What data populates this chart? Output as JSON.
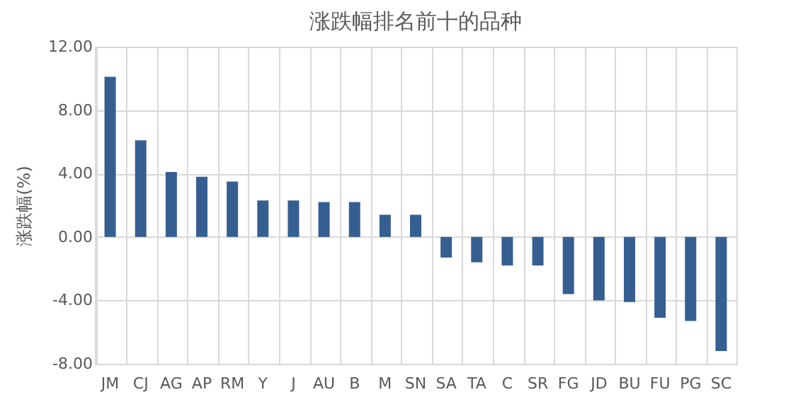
{
  "chart_data": {
    "type": "bar",
    "title": "涨跌幅排名前十的品种",
    "ylabel": "涨跌幅(%)",
    "categories": [
      "JM",
      "CJ",
      "AG",
      "AP",
      "RM",
      "Y",
      "J",
      "AU",
      "B",
      "M",
      "SN",
      "SA",
      "TA",
      "C",
      "SR",
      "FG",
      "JD",
      "BU",
      "FU",
      "PG",
      "SC"
    ],
    "values": [
      10.1,
      6.1,
      4.1,
      3.8,
      3.5,
      2.3,
      2.3,
      2.2,
      2.2,
      1.4,
      1.4,
      -1.3,
      -1.6,
      -1.8,
      -1.8,
      -3.6,
      -4.0,
      -4.1,
      -5.1,
      -5.3,
      -7.2
    ],
    "color": "#365f91",
    "ylim": [
      -8,
      12
    ],
    "yticks": [
      {
        "value": -8,
        "label": "-8.00"
      },
      {
        "value": -4,
        "label": "-4.00"
      },
      {
        "value": 0,
        "label": "0.00"
      },
      {
        "value": 4,
        "label": "4.00"
      },
      {
        "value": 8,
        "label": "8.00"
      },
      {
        "value": 12,
        "label": "12.00"
      }
    ],
    "grid": true
  }
}
